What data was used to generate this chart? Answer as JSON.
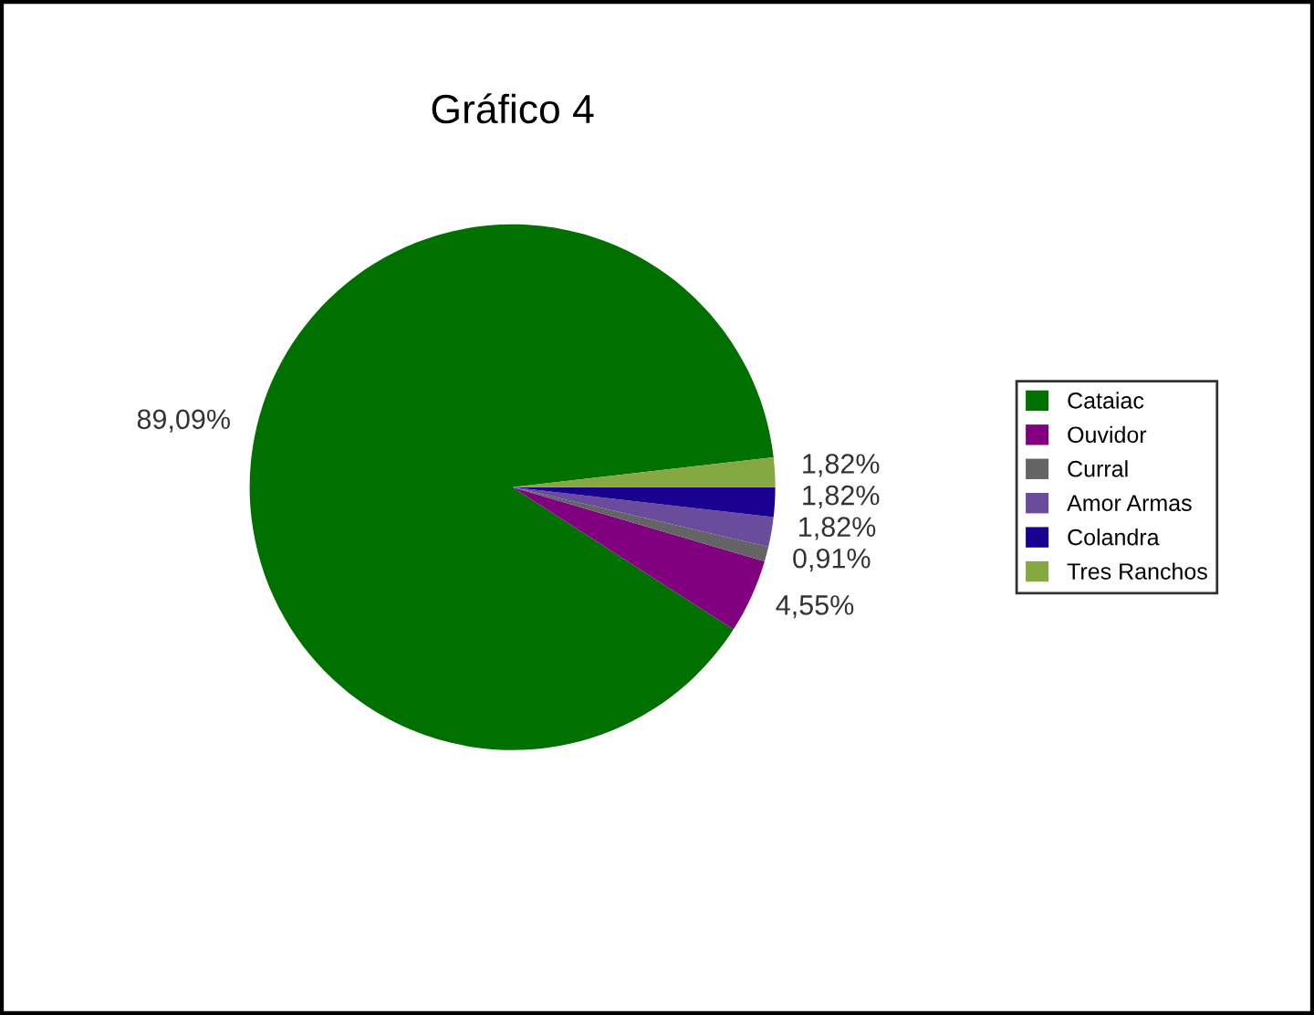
{
  "chart_data": {
    "type": "pie",
    "title": "Gráfico 4",
    "categories": [
      "Cataiac",
      "Ouvidor",
      "Curral",
      "Amor Armas",
      "Colandra",
      "Tres Ranchos"
    ],
    "values": [
      89.09,
      4.55,
      0.91,
      1.82,
      1.82,
      1.82
    ],
    "colors": [
      "#007000",
      "#800080",
      "#646464",
      "#6a4c9c",
      "#1a0090",
      "#86a840"
    ],
    "value_labels": [
      "89,09%",
      "4,55%",
      "0,91%",
      "1,82%",
      "1,82%",
      "1,82%"
    ],
    "legend": "right"
  }
}
